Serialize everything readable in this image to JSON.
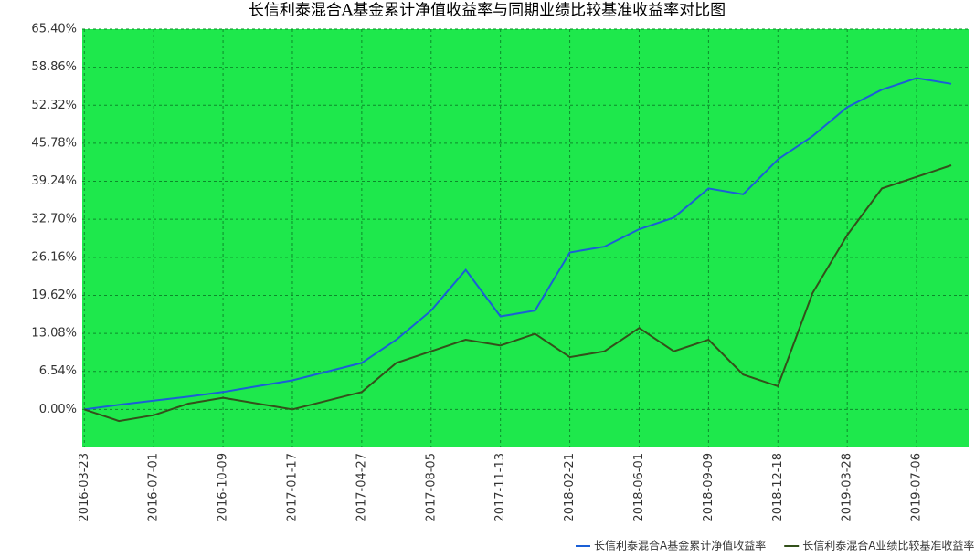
{
  "chart_data": {
    "type": "line",
    "title": "长信利泰混合A基金累计净值收益率与同期业绩比较基准收益率对比图",
    "x": [
      "2016-03-23",
      "2016-05-12",
      "2016-07-01",
      "2016-08-20",
      "2016-10-09",
      "2016-11-28",
      "2017-01-17",
      "2017-03-08",
      "2017-04-27",
      "2017-06-16",
      "2017-08-05",
      "2017-09-24",
      "2017-11-13",
      "2018-01-02",
      "2018-02-21",
      "2018-04-12",
      "2018-06-01",
      "2018-07-21",
      "2018-09-09",
      "2018-10-29",
      "2018-12-18",
      "2019-02-06",
      "2019-03-28",
      "2019-05-17",
      "2019-07-06",
      "2019-08-25"
    ],
    "series": [
      {
        "name": "长信利泰混合A基金累计净值收益率",
        "color": "#1a5fd6",
        "values": [
          0,
          0.8,
          1.5,
          2.2,
          3,
          4,
          5,
          6.5,
          8,
          12,
          17,
          24,
          16,
          17,
          27,
          28,
          31,
          33,
          38,
          37,
          43,
          47,
          52,
          55,
          57,
          56
        ]
      },
      {
        "name": "长信利泰混合A业绩比较基准收益率",
        "color": "#33501a",
        "values": [
          0,
          -2,
          -1,
          1,
          2,
          1,
          0,
          1.5,
          3,
          8,
          10,
          12,
          11,
          13,
          9,
          10,
          14,
          10,
          12,
          6,
          4,
          20,
          30,
          38,
          40,
          42
        ]
      }
    ],
    "xticks": [
      "2016-03-23",
      "2016-07-01",
      "2016-10-09",
      "2017-01-17",
      "2017-04-27",
      "2017-08-05",
      "2017-11-13",
      "2018-02-21",
      "2018-06-01",
      "2018-09-09",
      "2018-12-18",
      "2019-03-28",
      "2019-07-06"
    ],
    "ylim": [
      -6.54,
      65.4
    ],
    "yticks": [
      {
        "value": 0,
        "label": "0.00%"
      },
      {
        "value": 6.54,
        "label": "6.54%"
      },
      {
        "value": 13.08,
        "label": "13.08%"
      },
      {
        "value": 19.62,
        "label": "19.62%"
      },
      {
        "value": 26.16,
        "label": "26.16%"
      },
      {
        "value": 32.7,
        "label": "32.70%"
      },
      {
        "value": 39.24,
        "label": "39.24%"
      },
      {
        "value": 45.78,
        "label": "45.78%"
      },
      {
        "value": 52.32,
        "label": "52.32%"
      },
      {
        "value": 58.86,
        "label": "58.86%"
      },
      {
        "value": 65.4,
        "label": "65.40%"
      }
    ],
    "grid": true
  }
}
